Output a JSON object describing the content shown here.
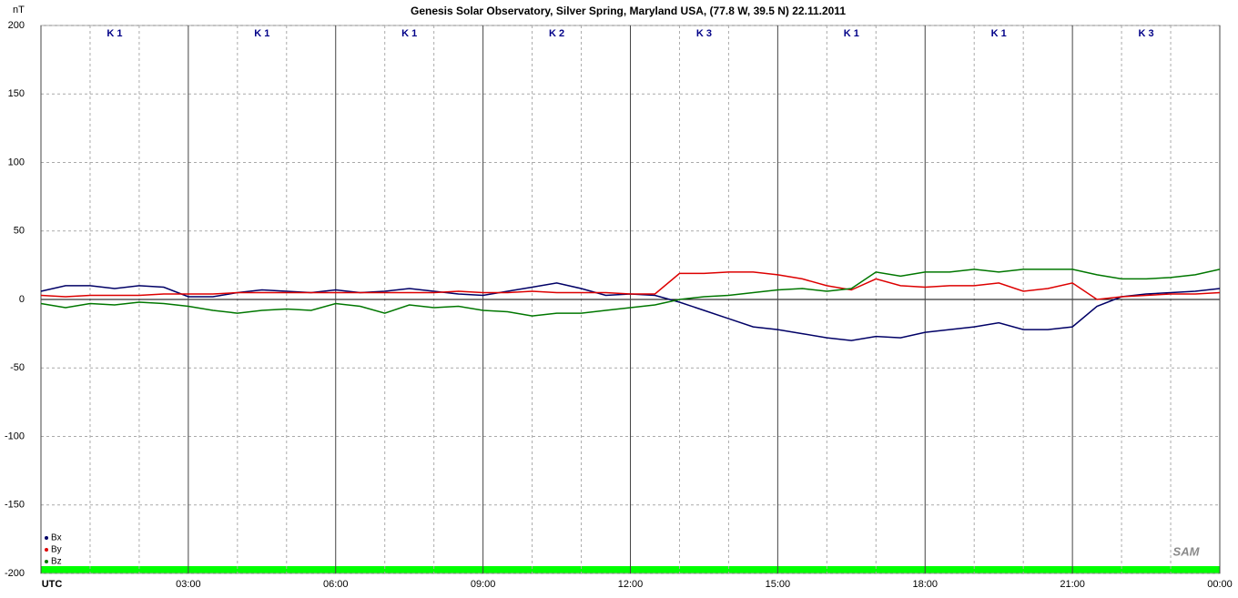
{
  "chart_data": {
    "type": "line",
    "title": "Genesis Solar Observatory, Silver Spring, Maryland USA, (77.8 W, 39.5 N)  22.11.2011",
    "ylabel": "nT",
    "logo": "SAM",
    "x": [
      0,
      0.5,
      1,
      1.5,
      2,
      2.5,
      3,
      3.5,
      4,
      4.5,
      5,
      5.5,
      6,
      6.5,
      7,
      7.5,
      8,
      8.5,
      9,
      9.5,
      10,
      10.5,
      11,
      11.5,
      12,
      12.5,
      13,
      13.5,
      14,
      14.5,
      15,
      15.5,
      16,
      16.5,
      17,
      17.5,
      18,
      18.5,
      19,
      19.5,
      20,
      20.5,
      21,
      21.5,
      22,
      22.5,
      23,
      23.5,
      24
    ],
    "series": [
      {
        "name": "Bx",
        "color": "#000066",
        "values": [
          6,
          10,
          10,
          8,
          10,
          9,
          2,
          2,
          5,
          7,
          6,
          5,
          7,
          5,
          6,
          8,
          6,
          4,
          3,
          6,
          9,
          12,
          8,
          3,
          4,
          3,
          -2,
          -8,
          -14,
          -20,
          -22,
          -25,
          -28,
          -30,
          -27,
          -28,
          -24,
          -22,
          -20,
          -17,
          -22,
          -22,
          -20,
          -5,
          2,
          4,
          5,
          6,
          8
        ]
      },
      {
        "name": "By",
        "color": "#dd0000",
        "values": [
          3,
          2,
          3,
          3,
          3,
          4,
          4,
          4,
          5,
          5,
          5,
          5,
          5,
          5,
          5,
          5,
          5,
          6,
          5,
          5,
          6,
          5,
          5,
          5,
          4,
          4,
          19,
          19,
          20,
          20,
          18,
          15,
          10,
          7,
          15,
          10,
          9,
          10,
          10,
          12,
          6,
          8,
          12,
          0,
          2,
          3,
          4,
          4,
          5
        ]
      },
      {
        "name": "Bz",
        "color": "#007700",
        "values": [
          -3,
          -6,
          -3,
          -4,
          -2,
          -3,
          -5,
          -8,
          -10,
          -8,
          -7,
          -8,
          -3,
          -5,
          -10,
          -4,
          -6,
          -5,
          -8,
          -9,
          -12,
          -10,
          -10,
          -8,
          -6,
          -4,
          0,
          2,
          3,
          5,
          7,
          8,
          6,
          8,
          20,
          17,
          20,
          20,
          22,
          20,
          22,
          22,
          22,
          18,
          15,
          15,
          16,
          18,
          22
        ]
      }
    ],
    "k_labels": [
      "K 1",
      "K 1",
      "K 1",
      "K 2",
      "K 3",
      "K 1",
      "K 1",
      "K 3"
    ],
    "xlim": [
      0,
      24
    ],
    "xticks": [
      {
        "value": 0,
        "label": "UTC"
      },
      {
        "value": 3,
        "label": "03:00"
      },
      {
        "value": 6,
        "label": "06:00"
      },
      {
        "value": 9,
        "label": "09:00"
      },
      {
        "value": 12,
        "label": "12:00"
      },
      {
        "value": 15,
        "label": "15:00"
      },
      {
        "value": 18,
        "label": "18:00"
      },
      {
        "value": 21,
        "label": "21:00"
      },
      {
        "value": 24,
        "label": "00:00"
      }
    ],
    "xminorticks": [
      1,
      2,
      4,
      5,
      7,
      8,
      10,
      11,
      13,
      14,
      16,
      17,
      19,
      20,
      22,
      23
    ],
    "ylim": [
      -200,
      200
    ],
    "yticks": [
      200,
      150,
      100,
      50,
      0,
      -50,
      -100,
      -150,
      -200
    ],
    "grid": true,
    "legend": "bottom-left"
  }
}
